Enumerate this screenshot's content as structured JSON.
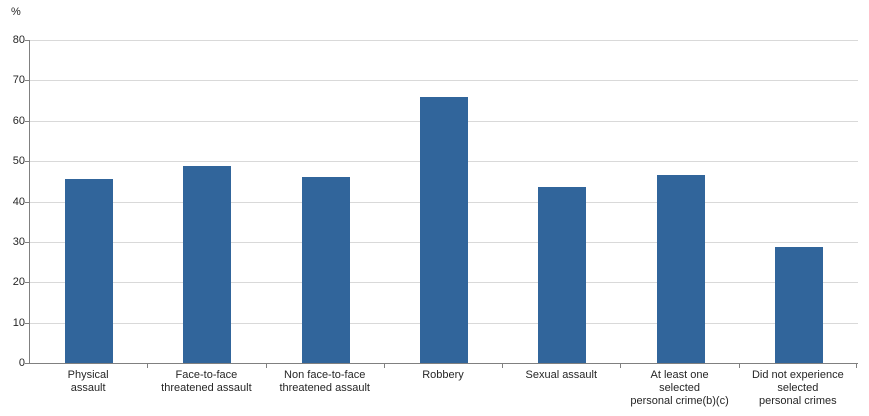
{
  "chart_data": {
    "type": "bar",
    "title": "",
    "unit_label": "%",
    "categories": [
      "Physical\nassault",
      "Face-to-face\nthreatened assault",
      "Non face-to-face\nthreatened assault",
      "Robbery",
      "Sexual assault",
      "At least one\nselected\npersonal crime(b)(c)",
      "Did not experience\nselected\npersonal crimes"
    ],
    "categories_flat": [
      "Physical assault",
      "Face-to-face threatened assault",
      "Non face-to-face threatened assault",
      "Robbery",
      "Sexual assault",
      "At least one selected personal crime(b)(c)",
      "Did not experience selected personal crimes"
    ],
    "values": [
      45.5,
      48.8,
      46.0,
      66.0,
      43.5,
      46.6,
      28.8
    ],
    "xlabel": "",
    "ylabel": "%",
    "ylim": [
      0,
      80
    ],
    "yticks": [
      0,
      10,
      20,
      30,
      40,
      50,
      60,
      70,
      80
    ],
    "grid": true,
    "legend": false,
    "colors": {
      "bar": "#31659B",
      "gridline": "#d9d9d9",
      "axis": "#808080",
      "text": "#262626",
      "background": "#ffffff"
    }
  }
}
